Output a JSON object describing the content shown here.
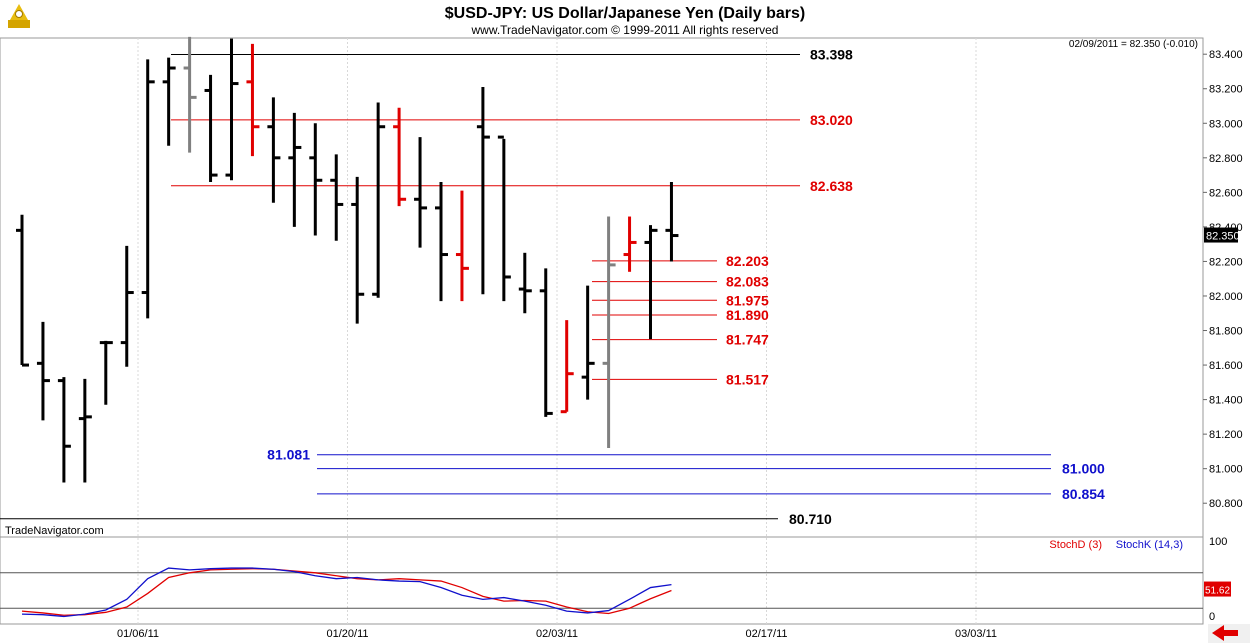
{
  "header": {
    "title": "$USD-JPY:  US Dollar/Japanese Yen  (Daily bars)",
    "subtitle": "www.TradeNavigator.com © 1999-2011 All rights reserved",
    "readout": "02/09/2011 = 82.350 (-0.010)",
    "watermark": "TradeNavigator.com"
  },
  "colors": {
    "up_bar": "#000000",
    "down_bar_highlight": "#e00000",
    "neutral_bar": "#808080",
    "black_level": "#000000",
    "red_level": "#e00000",
    "blue_level": "#1010cc",
    "stoch_d": "#e00000",
    "stoch_k": "#1010cc",
    "price_tag_bg": "#000000",
    "stoch_tag_bg": "#e00000"
  },
  "chart_data": [
    {
      "type": "ohlc",
      "ylim": [
        80.7,
        83.5
      ],
      "y_ticks": [
        "83.400",
        "83.200",
        "83.000",
        "82.800",
        "82.600",
        "82.400",
        "82.200",
        "82.000",
        "81.800",
        "81.600",
        "81.400",
        "81.200",
        "81.000",
        "80.800"
      ],
      "x_ticks": [
        "01/06/11",
        "01/20/11",
        "02/03/11",
        "02/17/11",
        "03/03/11"
      ],
      "last_price_tag": "82.350",
      "bars": [
        {
          "o": 82.38,
          "h": 82.47,
          "l": 81.6,
          "c": 81.6,
          "color": "black"
        },
        {
          "o": 81.61,
          "h": 81.85,
          "l": 81.28,
          "c": 81.51,
          "color": "black"
        },
        {
          "o": 81.51,
          "h": 81.53,
          "l": 80.92,
          "c": 81.13,
          "color": "black"
        },
        {
          "o": 81.29,
          "h": 81.52,
          "l": 80.92,
          "c": 81.3,
          "color": "black"
        },
        {
          "o": 81.73,
          "h": 81.74,
          "l": 81.37,
          "c": 81.73,
          "color": "black"
        },
        {
          "o": 81.73,
          "h": 82.29,
          "l": 81.59,
          "c": 82.02,
          "color": "black"
        },
        {
          "o": 82.02,
          "h": 83.37,
          "l": 81.87,
          "c": 83.24,
          "color": "black"
        },
        {
          "o": 83.24,
          "h": 83.38,
          "l": 82.87,
          "c": 83.32,
          "color": "black"
        },
        {
          "o": 83.32,
          "h": 83.5,
          "l": 82.83,
          "c": 83.15,
          "color": "gray"
        },
        {
          "o": 83.19,
          "h": 83.28,
          "l": 82.66,
          "c": 82.7,
          "color": "black"
        },
        {
          "o": 82.7,
          "h": 83.49,
          "l": 82.67,
          "c": 83.23,
          "color": "black"
        },
        {
          "o": 83.24,
          "h": 83.46,
          "l": 82.81,
          "c": 82.98,
          "color": "red"
        },
        {
          "o": 82.98,
          "h": 83.15,
          "l": 82.54,
          "c": 82.8,
          "color": "black"
        },
        {
          "o": 82.8,
          "h": 83.06,
          "l": 82.4,
          "c": 82.86,
          "color": "black"
        },
        {
          "o": 82.8,
          "h": 83.0,
          "l": 82.35,
          "c": 82.67,
          "color": "black"
        },
        {
          "o": 82.67,
          "h": 82.82,
          "l": 82.32,
          "c": 82.53,
          "color": "black"
        },
        {
          "o": 82.53,
          "h": 82.69,
          "l": 81.84,
          "c": 82.01,
          "color": "black"
        },
        {
          "o": 82.01,
          "h": 83.12,
          "l": 81.99,
          "c": 82.98,
          "color": "black"
        },
        {
          "o": 82.98,
          "h": 83.09,
          "l": 82.52,
          "c": 82.56,
          "color": "red"
        },
        {
          "o": 82.56,
          "h": 82.92,
          "l": 82.28,
          "c": 82.51,
          "color": "black"
        },
        {
          "o": 82.51,
          "h": 82.66,
          "l": 81.97,
          "c": 82.24,
          "color": "black"
        },
        {
          "o": 82.24,
          "h": 82.61,
          "l": 81.97,
          "c": 82.16,
          "color": "red"
        },
        {
          "o": 82.98,
          "h": 83.21,
          "l": 82.01,
          "c": 82.92,
          "color": "black"
        },
        {
          "o": 82.92,
          "h": 82.91,
          "l": 81.97,
          "c": 82.11,
          "color": "black"
        },
        {
          "o": 82.04,
          "h": 82.25,
          "l": 81.9,
          "c": 82.03,
          "color": "black"
        },
        {
          "o": 82.03,
          "h": 82.16,
          "l": 81.3,
          "c": 81.32,
          "color": "black"
        },
        {
          "o": 81.33,
          "h": 81.86,
          "l": 81.33,
          "c": 81.55,
          "color": "red"
        },
        {
          "o": 81.53,
          "h": 82.06,
          "l": 81.4,
          "c": 81.61,
          "color": "black"
        },
        {
          "o": 81.61,
          "h": 82.46,
          "l": 81.12,
          "c": 82.18,
          "color": "gray"
        },
        {
          "o": 82.24,
          "h": 82.46,
          "l": 82.14,
          "c": 82.31,
          "color": "red"
        },
        {
          "o": 82.31,
          "h": 82.41,
          "l": 81.75,
          "c": 82.38,
          "color": "black"
        },
        {
          "o": 82.38,
          "h": 82.66,
          "l": 82.2,
          "c": 82.35,
          "color": "black"
        }
      ],
      "levels": [
        {
          "value": 83.398,
          "label": "83.398",
          "color": "black"
        },
        {
          "value": 83.02,
          "label": "83.020",
          "color": "red"
        },
        {
          "value": 82.638,
          "label": "82.638",
          "color": "red"
        },
        {
          "value": 82.203,
          "label": "82.203",
          "color": "red"
        },
        {
          "value": 82.083,
          "label": "82.083",
          "color": "red"
        },
        {
          "value": 81.975,
          "label": "81.975",
          "color": "red"
        },
        {
          "value": 81.89,
          "label": "81.890",
          "color": "red"
        },
        {
          "value": 81.747,
          "label": "81.747",
          "color": "red"
        },
        {
          "value": 81.517,
          "label": "81.517",
          "color": "red"
        },
        {
          "value": 81.081,
          "label": "81.081",
          "color": "blue"
        },
        {
          "value": 81.0,
          "label": "81.000",
          "color": "blue"
        },
        {
          "value": 80.854,
          "label": "80.854",
          "color": "blue"
        },
        {
          "value": 80.71,
          "label": "80.710",
          "color": "black"
        }
      ]
    },
    {
      "type": "line",
      "ylim": [
        0,
        100
      ],
      "y_ticks": [
        "100",
        "0"
      ],
      "reference_lines": [
        80,
        20
      ],
      "legend": [
        "StochD (3)",
        "StochK (14,3)"
      ],
      "last_value_tag": "51.62",
      "series": [
        {
          "name": "StochD (3)",
          "color": "red",
          "values": [
            15,
            12,
            8,
            9,
            13,
            22,
            45,
            72,
            80,
            85,
            86,
            87,
            86,
            83,
            80,
            75,
            70,
            68,
            70,
            68,
            66,
            55,
            40,
            32,
            33,
            32,
            22,
            14,
            11,
            20,
            36,
            50
          ]
        },
        {
          "name": "StochK (14,3)",
          "color": "blue",
          "values": [
            10,
            9,
            6,
            10,
            17,
            35,
            70,
            88,
            85,
            87,
            88,
            88,
            86,
            82,
            75,
            70,
            72,
            68,
            66,
            65,
            55,
            42,
            35,
            38,
            32,
            25,
            15,
            12,
            16,
            35,
            55,
            60
          ]
        }
      ]
    }
  ]
}
